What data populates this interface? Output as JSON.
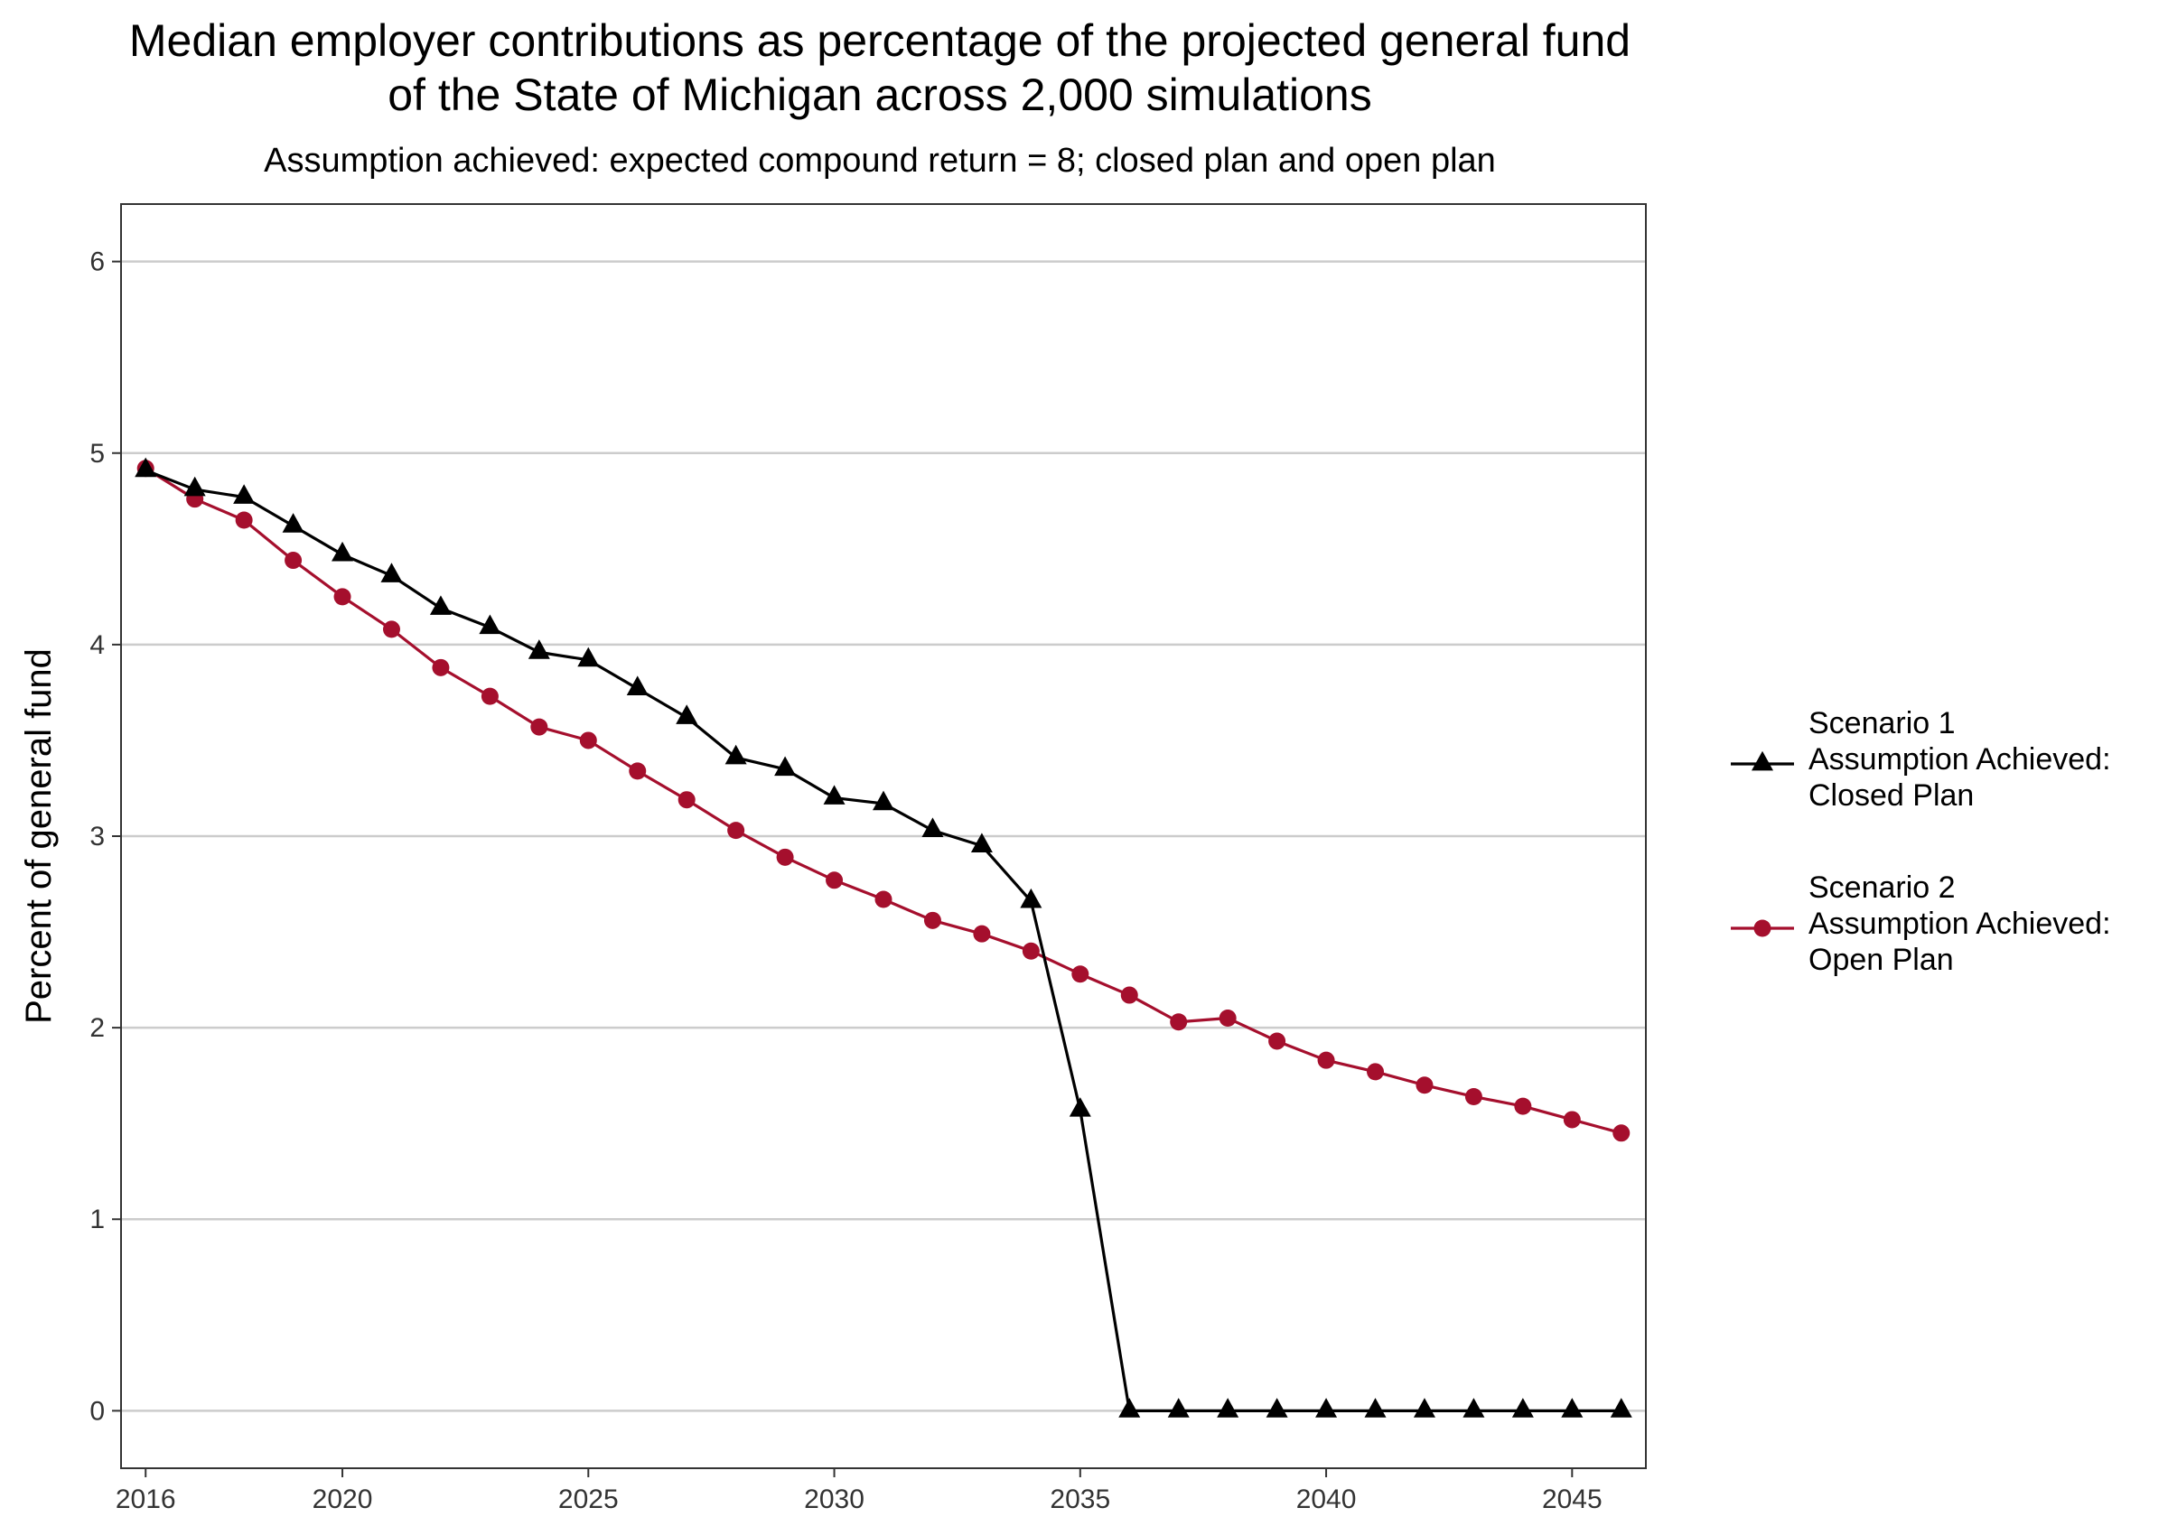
{
  "chart_data": {
    "type": "line",
    "title_lines": [
      "Median employer contributions as percentage of the projected general fund",
      "of the State of Michigan across 2,000 simulations"
    ],
    "subtitle": "Assumption achieved: expected compound return = 8; closed plan and open plan",
    "xlabel": "",
    "ylabel": "Percent of general fund",
    "xlim": [
      2015.5,
      2046.5
    ],
    "ylim": [
      -0.3,
      6.3
    ],
    "x_ticks": [
      2016,
      2020,
      2025,
      2030,
      2035,
      2040,
      2045
    ],
    "y_ticks": [
      0,
      1,
      2,
      3,
      4,
      5,
      6
    ],
    "grid": "horizontal major lines",
    "legend_position": "right",
    "x": [
      2016,
      2017,
      2018,
      2019,
      2020,
      2021,
      2022,
      2023,
      2024,
      2025,
      2026,
      2027,
      2028,
      2029,
      2030,
      2031,
      2032,
      2033,
      2034,
      2035,
      2036,
      2037,
      2038,
      2039,
      2040,
      2041,
      2042,
      2043,
      2044,
      2045,
      2046
    ],
    "series": [
      {
        "name": "Scenario 1",
        "legend_lines": [
          "Scenario 1",
          "Assumption Achieved:",
          "Closed Plan"
        ],
        "color": "#000000",
        "marker": "triangle",
        "values": [
          4.91,
          4.81,
          4.77,
          4.62,
          4.47,
          4.36,
          4.19,
          4.09,
          3.96,
          3.92,
          3.77,
          3.62,
          3.41,
          3.35,
          3.2,
          3.17,
          3.03,
          2.95,
          2.66,
          1.57,
          0.0,
          0.0,
          0.0,
          0.0,
          0.0,
          0.0,
          0.0,
          0.0,
          0.0,
          0.0,
          0.0
        ]
      },
      {
        "name": "Scenario 2",
        "legend_lines": [
          "Scenario 2",
          "Assumption Achieved:",
          "Open Plan"
        ],
        "color": "#a50f2d",
        "marker": "circle",
        "values": [
          4.92,
          4.76,
          4.65,
          4.44,
          4.25,
          4.08,
          3.88,
          3.73,
          3.57,
          3.5,
          3.34,
          3.19,
          3.03,
          2.89,
          2.77,
          2.67,
          2.56,
          2.49,
          2.4,
          2.28,
          2.17,
          2.03,
          2.05,
          1.93,
          1.83,
          1.77,
          1.7,
          1.64,
          1.59,
          1.52,
          1.45
        ]
      }
    ]
  }
}
